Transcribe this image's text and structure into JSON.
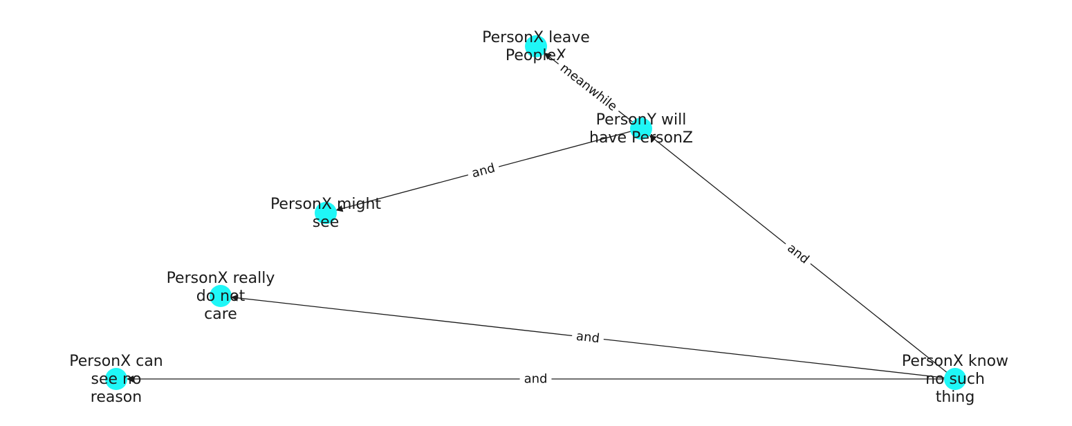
{
  "graph": {
    "node_color": "#1ff7f7",
    "edge_color": "#1a1a1a",
    "nodes": [
      {
        "id": "n_leave",
        "lines": [
          "PersonX leave",
          "PeopleX"
        ]
      },
      {
        "id": "n_will",
        "lines": [
          "PersonY will",
          "have PersonZ"
        ]
      },
      {
        "id": "n_might",
        "lines": [
          "PersonX might",
          "see"
        ]
      },
      {
        "id": "n_care",
        "lines": [
          "PersonX really",
          "do not",
          "care"
        ]
      },
      {
        "id": "n_reason",
        "lines": [
          "PersonX can",
          "see no",
          "reason"
        ]
      },
      {
        "id": "n_know",
        "lines": [
          "PersonX know",
          "no such",
          "thing"
        ]
      }
    ],
    "edges": [
      {
        "source": "n_will",
        "target": "n_leave",
        "label": "meanwhile"
      },
      {
        "source": "n_will",
        "target": "n_might",
        "label": "and"
      },
      {
        "source": "n_know",
        "target": "n_will",
        "label": "and"
      },
      {
        "source": "n_know",
        "target": "n_care",
        "label": "and"
      },
      {
        "source": "n_know",
        "target": "n_reason",
        "label": "and"
      }
    ]
  }
}
